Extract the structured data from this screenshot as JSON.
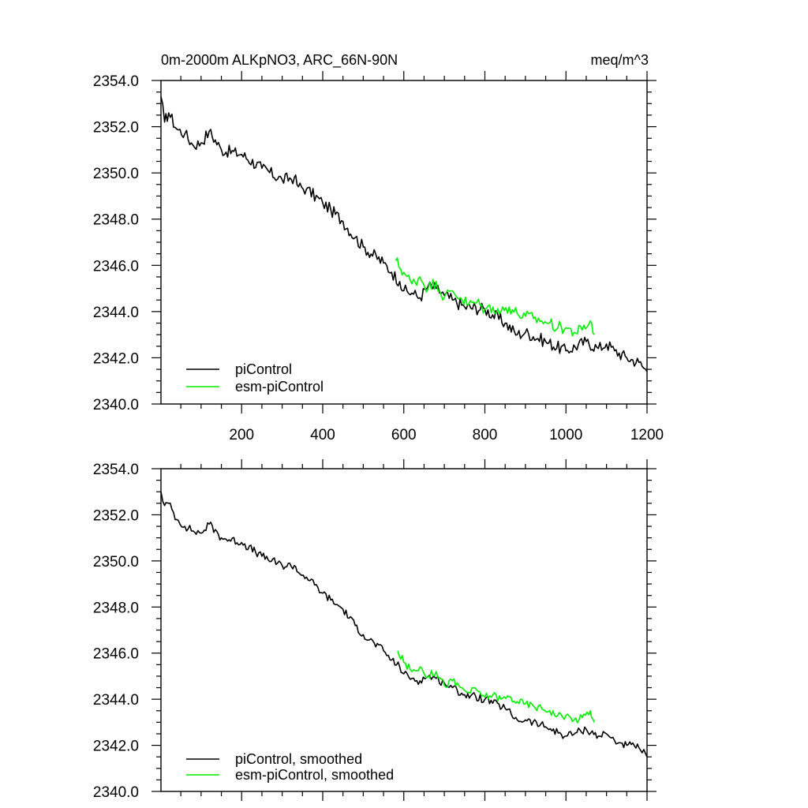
{
  "page": {
    "title": "0m-2000m ALKpNO3, ARC_66N-90N",
    "units": "meq/m^3",
    "colors": {
      "background": "#ffffff",
      "axis": "#000000",
      "pi_control": "#000000",
      "esm_pi_control": "#00ee00"
    }
  },
  "chart_data": [
    {
      "type": "line",
      "title": "0m-2000m ALKpNO3, ARC_66N-90N",
      "units_label": "meq/m^3",
      "xlabel": "",
      "ylabel": "",
      "xlim": [
        1,
        1200
      ],
      "ylim": [
        2340.0,
        2354.0
      ],
      "y_ticks": [
        "2354.0",
        "2352.0",
        "2350.0",
        "2348.0",
        "2346.0",
        "2344.0",
        "2342.0",
        "2340.0"
      ],
      "x_tick_values": [
        200,
        400,
        600,
        800,
        1000,
        1200
      ],
      "x_ticks": [
        "200",
        "400",
        "600",
        "800",
        "1000",
        "1200"
      ],
      "legend_position": "bottom-left",
      "legend": [
        "piControl",
        "esm-piControl"
      ],
      "series": [
        {
          "name": "piControl",
          "color": "#000000",
          "x": [
            1,
            10,
            20,
            40,
            60,
            80,
            100,
            120,
            150,
            200,
            250,
            300,
            330,
            340,
            360,
            400,
            420,
            450,
            480,
            500,
            550,
            570,
            590,
            600,
            620,
            640,
            660,
            680,
            700,
            720,
            750,
            800,
            850,
            880,
            900,
            950,
            1000,
            1050,
            1080,
            1100,
            1120,
            1150,
            1180,
            1200
          ],
          "y": [
            2353.3,
            2352.2,
            2352.6,
            2351.9,
            2351.7,
            2351.2,
            2351.3,
            2351.8,
            2351.0,
            2350.8,
            2350.2,
            2349.7,
            2349.8,
            2349.4,
            2349.3,
            2348.7,
            2348.4,
            2347.9,
            2347.2,
            2346.8,
            2346.1,
            2345.7,
            2345.3,
            2344.9,
            2344.8,
            2344.6,
            2345.1,
            2345.0,
            2344.7,
            2344.5,
            2344.2,
            2344.1,
            2343.5,
            2343.0,
            2343.1,
            2342.7,
            2342.3,
            2342.7,
            2342.4,
            2342.6,
            2342.3,
            2342.0,
            2341.8,
            2341.4
          ]
        },
        {
          "name": "esm-piControl",
          "color": "#00ee00",
          "x": [
            580,
            600,
            620,
            640,
            660,
            680,
            700,
            720,
            740,
            760,
            780,
            800,
            820,
            840,
            860,
            880,
            900,
            920,
            940,
            960,
            980,
            1000,
            1020,
            1040,
            1060,
            1070
          ],
          "y": [
            2346.2,
            2345.7,
            2345.2,
            2345.5,
            2345.0,
            2345.3,
            2344.6,
            2344.9,
            2344.6,
            2344.3,
            2344.4,
            2344.1,
            2344.2,
            2344.0,
            2344.2,
            2343.9,
            2343.8,
            2343.7,
            2343.6,
            2343.5,
            2343.3,
            2343.3,
            2343.1,
            2343.2,
            2343.6,
            2343.0
          ]
        }
      ]
    },
    {
      "type": "line",
      "title": "",
      "xlabel": "",
      "ylabel": "",
      "xlim": [
        1,
        1200
      ],
      "ylim": [
        2340.0,
        2354.0
      ],
      "y_ticks": [
        "2354.0",
        "2352.0",
        "2350.0",
        "2348.0",
        "2346.0",
        "2344.0",
        "2342.0",
        "2340.0"
      ],
      "x_tick_values": [
        200,
        400,
        600,
        800,
        1000,
        1200
      ],
      "legend_position": "bottom-left",
      "legend": [
        "piControl, smoothed",
        "esm-piControl, smoothed"
      ],
      "series": [
        {
          "name": "piControl, smoothed",
          "color": "#000000",
          "x": [
            1,
            10,
            20,
            40,
            60,
            80,
            100,
            120,
            150,
            200,
            250,
            300,
            330,
            340,
            360,
            400,
            420,
            450,
            480,
            500,
            550,
            570,
            590,
            600,
            620,
            640,
            660,
            680,
            700,
            720,
            750,
            800,
            850,
            880,
            900,
            950,
            1000,
            1050,
            1080,
            1100,
            1120,
            1150,
            1180,
            1200
          ],
          "y": [
            2353.0,
            2352.4,
            2352.5,
            2351.8,
            2351.5,
            2351.3,
            2351.2,
            2351.6,
            2351.0,
            2350.8,
            2350.2,
            2349.8,
            2349.8,
            2349.5,
            2349.3,
            2348.6,
            2348.3,
            2347.9,
            2347.2,
            2346.8,
            2346.1,
            2345.7,
            2345.4,
            2345.1,
            2344.9,
            2344.8,
            2345.0,
            2344.9,
            2344.7,
            2344.5,
            2344.2,
            2344.0,
            2343.6,
            2343.1,
            2343.1,
            2342.8,
            2342.4,
            2342.7,
            2342.4,
            2342.5,
            2342.2,
            2342.0,
            2341.9,
            2341.5
          ]
        },
        {
          "name": "esm-piControl, smoothed",
          "color": "#00ee00",
          "x": [
            585,
            600,
            620,
            640,
            660,
            680,
            700,
            720,
            740,
            760,
            780,
            800,
            820,
            840,
            860,
            880,
            900,
            920,
            940,
            960,
            980,
            1000,
            1020,
            1040,
            1060,
            1070
          ],
          "y": [
            2346.1,
            2345.6,
            2345.2,
            2345.4,
            2345.0,
            2345.2,
            2344.6,
            2344.8,
            2344.5,
            2344.3,
            2344.4,
            2344.1,
            2344.2,
            2344.0,
            2344.1,
            2343.9,
            2343.8,
            2343.7,
            2343.6,
            2343.5,
            2343.3,
            2343.3,
            2343.1,
            2343.2,
            2343.5,
            2343.0
          ]
        }
      ]
    }
  ]
}
